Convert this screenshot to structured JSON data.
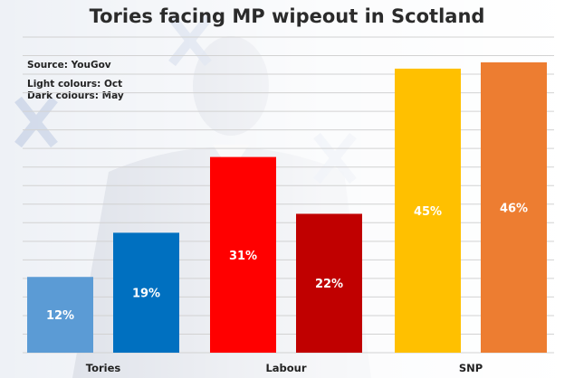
{
  "header": {
    "title": "Tories facing MP wipeout in Scotland",
    "source": "Source: YouGov",
    "note_light": "Light colours: Oct",
    "note_dark": "Dark colours: May"
  },
  "chart_data": {
    "type": "bar",
    "categories": [
      "Tories",
      "Labour",
      "SNP"
    ],
    "series": [
      {
        "name": "Oct",
        "values": [
          12,
          31,
          45
        ],
        "colors": [
          "#5b9bd5",
          "#ff0000",
          "#ffc000"
        ]
      },
      {
        "name": "May",
        "values": [
          19,
          22,
          46
        ],
        "colors": [
          "#0070c0",
          "#c00000",
          "#ed7d31"
        ]
      }
    ],
    "value_suffix": "%",
    "ylim": [
      0,
      50
    ],
    "grid": true,
    "title": "Tories facing MP wipeout in Scotland"
  }
}
